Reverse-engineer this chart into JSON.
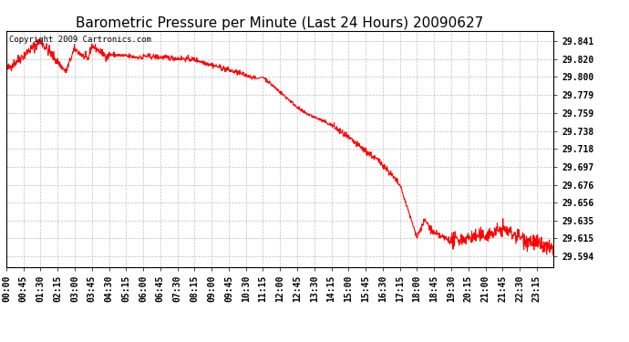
{
  "title": "Barometric Pressure per Minute (Last 24 Hours) 20090627",
  "copyright_text": "Copyright 2009 Cartronics.com",
  "line_color": "#ff0000",
  "background_color": "#ffffff",
  "plot_bg_color": "#ffffff",
  "grid_color": "#c0c0c0",
  "yticks": [
    29.594,
    29.615,
    29.635,
    29.656,
    29.676,
    29.697,
    29.718,
    29.738,
    29.759,
    29.779,
    29.8,
    29.82,
    29.841
  ],
  "ylim": [
    29.582,
    29.853
  ],
  "xtick_labels": [
    "00:00",
    "00:45",
    "01:30",
    "02:15",
    "03:00",
    "03:45",
    "04:30",
    "05:15",
    "06:00",
    "06:45",
    "07:30",
    "08:15",
    "09:00",
    "09:45",
    "10:30",
    "11:15",
    "12:00",
    "12:45",
    "13:30",
    "14:15",
    "15:00",
    "15:45",
    "16:30",
    "17:15",
    "18:00",
    "18:45",
    "19:30",
    "20:15",
    "21:00",
    "21:45",
    "22:30",
    "23:15"
  ],
  "title_fontsize": 11,
  "tick_fontsize": 7,
  "copyright_fontsize": 6.5
}
